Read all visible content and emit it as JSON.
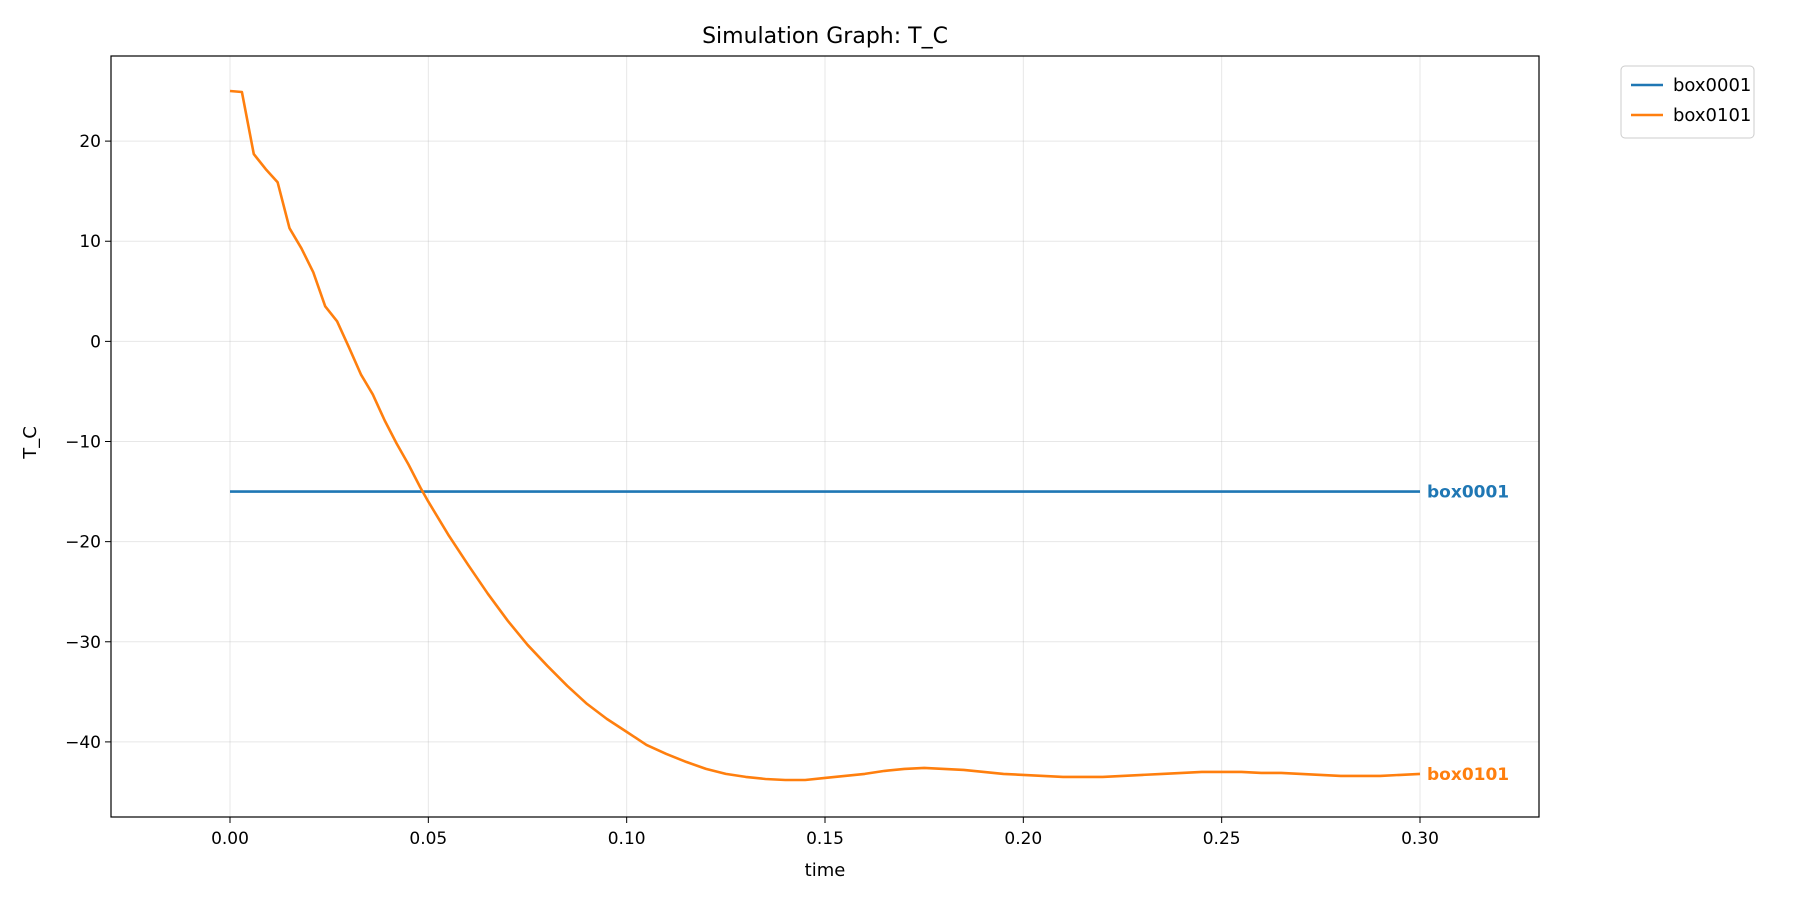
{
  "chart_data": {
    "type": "line",
    "title": "Simulation Graph: T_C",
    "xlabel": "time",
    "ylabel": "T_C",
    "xlim": [
      -0.03,
      0.33
    ],
    "ylim": [
      -47.5,
      28.5
    ],
    "xticks": [
      0.0,
      0.05,
      0.1,
      0.15,
      0.2,
      0.25,
      0.3
    ],
    "xtick_labels": [
      "0.00",
      "0.05",
      "0.10",
      "0.15",
      "0.20",
      "0.25",
      "0.30"
    ],
    "yticks": [
      -40,
      -30,
      -20,
      -10,
      0,
      10,
      20
    ],
    "ytick_labels": [
      "−40",
      "−30",
      "−20",
      "−10",
      "0",
      "10",
      "20"
    ],
    "grid": true,
    "legend_position": "outside-top-right",
    "series": [
      {
        "name": "box0001",
        "color": "#1f77b4",
        "end_label": "box0001",
        "x": [
          0.0,
          0.3
        ],
        "y": [
          -15.0,
          -15.0
        ]
      },
      {
        "name": "box0101",
        "color": "#ff7f0e",
        "end_label": "box0101",
        "x": [
          0.0,
          0.003,
          0.006,
          0.009,
          0.012,
          0.015,
          0.018,
          0.021,
          0.024,
          0.027,
          0.03,
          0.033,
          0.036,
          0.039,
          0.042,
          0.045,
          0.048,
          0.05,
          0.055,
          0.06,
          0.065,
          0.07,
          0.075,
          0.08,
          0.085,
          0.09,
          0.095,
          0.1,
          0.105,
          0.11,
          0.115,
          0.12,
          0.125,
          0.13,
          0.135,
          0.14,
          0.145,
          0.15,
          0.155,
          0.16,
          0.165,
          0.17,
          0.175,
          0.18,
          0.185,
          0.19,
          0.195,
          0.2,
          0.205,
          0.21,
          0.215,
          0.22,
          0.225,
          0.23,
          0.235,
          0.24,
          0.245,
          0.25,
          0.255,
          0.26,
          0.265,
          0.27,
          0.275,
          0.28,
          0.285,
          0.29,
          0.295,
          0.3
        ],
        "y": [
          25.0,
          24.9,
          18.7,
          17.2,
          15.9,
          11.3,
          9.3,
          6.9,
          3.5,
          2.0,
          -0.6,
          -3.3,
          -5.3,
          -7.9,
          -10.2,
          -12.3,
          -14.6,
          -16.0,
          -19.3,
          -22.3,
          -25.2,
          -27.9,
          -30.3,
          -32.4,
          -34.4,
          -36.2,
          -37.7,
          -39.0,
          -40.3,
          -41.2,
          -42.0,
          -42.7,
          -43.2,
          -43.5,
          -43.7,
          -43.8,
          -43.8,
          -43.6,
          -43.4,
          -43.2,
          -42.9,
          -42.7,
          -42.6,
          -42.7,
          -42.8,
          -43.0,
          -43.2,
          -43.3,
          -43.4,
          -43.5,
          -43.5,
          -43.5,
          -43.4,
          -43.3,
          -43.2,
          -43.1,
          -43.0,
          -43.0,
          -43.0,
          -43.1,
          -43.1,
          -43.2,
          -43.3,
          -43.4,
          -43.4,
          -43.4,
          -43.3,
          -43.2
        ]
      }
    ]
  }
}
